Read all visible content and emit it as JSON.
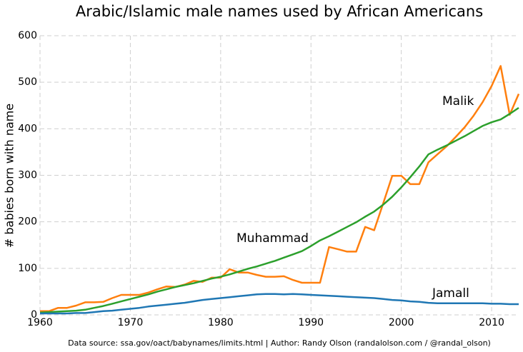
{
  "chart_data": {
    "type": "line",
    "title": "Arabic/Islamic male names used by African Americans",
    "ylabel": "# babies born with name",
    "source": "Data source: ssa.gov/oact/babynames/limits.html | Author: Randy Olson (randalolson.com / @randal_olson)",
    "x": [
      1960,
      1961,
      1962,
      1963,
      1964,
      1965,
      1966,
      1967,
      1968,
      1969,
      1970,
      1971,
      1972,
      1973,
      1974,
      1975,
      1976,
      1977,
      1978,
      1979,
      1980,
      1981,
      1982,
      1983,
      1984,
      1985,
      1986,
      1987,
      1988,
      1989,
      1990,
      1991,
      1992,
      1993,
      1994,
      1995,
      1996,
      1997,
      1998,
      1999,
      2000,
      2001,
      2002,
      2003,
      2004,
      2005,
      2006,
      2007,
      2008,
      2009,
      2010,
      2011,
      2012,
      2013
    ],
    "series": [
      {
        "name": "Malik",
        "color": "#ff7f0e",
        "values": [
          8,
          8,
          15,
          15,
          20,
          27,
          27,
          28,
          36,
          43,
          43,
          43,
          48,
          55,
          61,
          60,
          65,
          73,
          71,
          80,
          80,
          98,
          91,
          91,
          86,
          82,
          82,
          83,
          75,
          69,
          69,
          69,
          146,
          141,
          136,
          136,
          189,
          182,
          240,
          299,
          299,
          281,
          281,
          328,
          345,
          362,
          382,
          403,
          428,
          457,
          492,
          535,
          430,
          475
        ]
      },
      {
        "name": "Muhammad",
        "color": "#2ca02c",
        "values": [
          5,
          6,
          7,
          8,
          9,
          11,
          15,
          19,
          24,
          29,
          34,
          39,
          44,
          50,
          55,
          60,
          64,
          68,
          73,
          78,
          82,
          87,
          93,
          99,
          104,
          110,
          116,
          123,
          130,
          137,
          148,
          160,
          169,
          179,
          189,
          199,
          211,
          222,
          237,
          254,
          274,
          296,
          319,
          345,
          355,
          364,
          374,
          384,
          395,
          406,
          414,
          420,
          432,
          445
        ]
      },
      {
        "name": "Jamall",
        "color": "#1f77b4",
        "values": [
          3,
          3,
          3,
          3,
          4,
          4,
          6,
          8,
          9,
          11,
          13,
          15,
          18,
          20,
          22,
          24,
          26,
          29,
          32,
          34,
          36,
          38,
          40,
          42,
          44,
          45,
          45,
          44,
          45,
          44,
          43,
          42,
          41,
          40,
          39,
          38,
          37,
          36,
          34,
          32,
          31,
          29,
          28,
          26,
          25,
          25,
          25,
          25,
          25,
          25,
          24,
          24,
          23,
          23
        ]
      }
    ],
    "xlim": [
      1960,
      2013
    ],
    "xticks": [
      1960,
      1970,
      1980,
      1990,
      2000,
      2010
    ],
    "ylim": [
      0,
      600
    ],
    "yticks": [
      0,
      100,
      200,
      300,
      400,
      500,
      600
    ],
    "grid": true
  }
}
